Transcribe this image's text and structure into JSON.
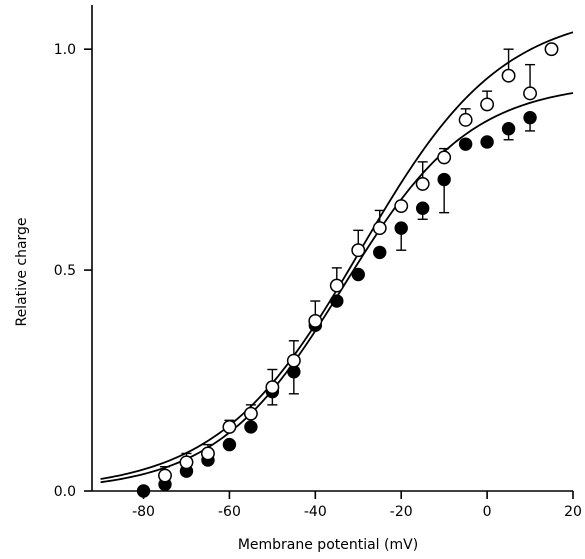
{
  "chart_data": {
    "type": "scatter",
    "title": "",
    "xlabel": "Membrane potential (mV)",
    "ylabel": "Relative charge",
    "xlim": [
      -92,
      20
    ],
    "ylim": [
      0,
      1.1
    ],
    "x_ticks": [
      -80,
      -60,
      -40,
      -20,
      0,
      20
    ],
    "x_tick_labels": [
      "-80",
      "-60",
      "-40",
      "-20",
      "0",
      "20"
    ],
    "y_ticks": [
      0,
      0.5,
      1.0
    ],
    "y_tick_labels": [
      "0.0",
      "0.5",
      "1.0"
    ],
    "grid": false,
    "legend": "none",
    "series": [
      {
        "marker": "open-circle",
        "x": [
          -75,
          -70,
          -65,
          -60,
          -55,
          -50,
          -45,
          -40,
          -35,
          -30,
          -25,
          -20,
          -15,
          -10,
          -5,
          0,
          5,
          10,
          15
        ],
        "y": [
          0.035,
          0.065,
          0.085,
          0.145,
          0.175,
          0.235,
          0.295,
          0.385,
          0.465,
          0.545,
          0.595,
          0.645,
          0.695,
          0.755,
          0.84,
          0.875,
          0.94,
          0.9,
          1.0
        ],
        "err_upper": [
          0.055,
          0.085,
          0.105,
          0.16,
          0.195,
          0.275,
          0.34,
          0.43,
          0.505,
          0.59,
          0.635,
          0.655,
          0.745,
          0.775,
          0.865,
          0.905,
          1.0,
          0.965,
          null
        ]
      },
      {
        "marker": "filled-circle",
        "x": [
          -80,
          -75,
          -70,
          -65,
          -60,
          -55,
          -50,
          -45,
          -40,
          -35,
          -30,
          -25,
          -20,
          -15,
          -10,
          -5,
          0,
          5,
          10
        ],
        "y": [
          0.0,
          0.015,
          0.045,
          0.07,
          0.105,
          0.145,
          0.225,
          0.27,
          0.375,
          0.43,
          0.49,
          0.54,
          0.595,
          0.64,
          0.705,
          0.785,
          0.79,
          0.82,
          0.845
        ],
        "err_lower": [
          null,
          null,
          null,
          null,
          null,
          null,
          0.195,
          0.22,
          null,
          null,
          null,
          null,
          0.545,
          0.615,
          0.63,
          null,
          null,
          0.795,
          0.815
        ]
      }
    ],
    "fit_curves": [
      {
        "type": "boltzmann",
        "amax": 1.09,
        "v_half": -29.5,
        "k": 16.5,
        "x_range": [
          -90,
          20
        ]
      },
      {
        "type": "boltzmann",
        "amax": 0.925,
        "v_half": -33.5,
        "k": 14.8,
        "x_range": [
          -90,
          20
        ]
      }
    ]
  }
}
